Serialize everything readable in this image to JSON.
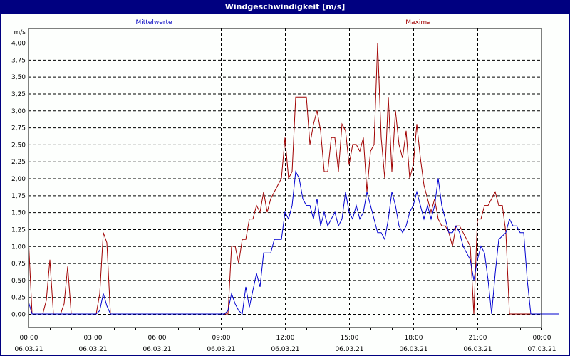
{
  "window": {
    "title": "Windgeschwindigkeit [m/s]"
  },
  "legend": {
    "mean_label": "Mittelwerte",
    "max_label": "Maxima"
  },
  "colors": {
    "titlebar": "#000080",
    "background": "#fdfffd",
    "mean": "#0000d0",
    "max": "#a00000",
    "grid": "#000000"
  },
  "chart_data": {
    "type": "line",
    "title": "Windgeschwindigkeit [m/s]",
    "ylabel": "m/s",
    "xlabel": "",
    "ylim": [
      0,
      4.0
    ],
    "grid": true,
    "legend_position": "top",
    "y_ticks": [
      "0,00",
      "0,25",
      "0,50",
      "0,75",
      "1,00",
      "1,25",
      "1,50",
      "1,75",
      "2,00",
      "2,25",
      "2,50",
      "2,75",
      "3,00",
      "3,25",
      "3,50",
      "3,75",
      "4,00"
    ],
    "x_ticks": [
      {
        "time": "00:00",
        "date": "06.03.21"
      },
      {
        "time": "03:00",
        "date": "06.03.21"
      },
      {
        "time": "06:00",
        "date": "06.03.21"
      },
      {
        "time": "09:00",
        "date": "06.03.21"
      },
      {
        "time": "12:00",
        "date": "06.03.21"
      },
      {
        "time": "15:00",
        "date": "06.03.21"
      },
      {
        "time": "18:00",
        "date": "06.03.21"
      },
      {
        "time": "21:00",
        "date": "06.03.21"
      },
      {
        "time": "00:00",
        "date": "07.03.21"
      }
    ],
    "x_interval_minutes": 10,
    "series": [
      {
        "name": "Mittelwerte",
        "color": "#0000d0",
        "values": [
          0.18,
          0.0,
          0,
          0,
          0,
          0,
          0,
          0,
          0,
          0,
          0,
          0,
          0,
          0,
          0,
          0,
          0,
          0,
          0,
          0,
          0.05,
          0.3,
          0.12,
          0.0,
          0,
          0,
          0,
          0,
          0,
          0,
          0,
          0,
          0,
          0,
          0,
          0,
          0,
          0,
          0,
          0,
          0,
          0,
          0,
          0,
          0,
          0,
          0,
          0,
          0,
          0,
          0,
          0,
          0,
          0,
          0,
          0,
          0.05,
          0.3,
          0.15,
          0.05,
          0.0,
          0.4,
          0.1,
          0.35,
          0.6,
          0.4,
          0.9,
          0.9,
          0.9,
          1.1,
          1.1,
          1.1,
          1.5,
          1.4,
          1.6,
          2.1,
          2.0,
          1.7,
          1.6,
          1.6,
          1.4,
          1.7,
          1.3,
          1.5,
          1.3,
          1.4,
          1.5,
          1.3,
          1.4,
          1.8,
          1.5,
          1.4,
          1.6,
          1.4,
          1.5,
          1.8,
          1.6,
          1.4,
          1.2,
          1.2,
          1.1,
          1.4,
          1.8,
          1.6,
          1.3,
          1.2,
          1.3,
          1.5,
          1.6,
          1.8,
          1.6,
          1.4,
          1.6,
          1.4,
          1.6,
          2.0,
          1.6,
          1.4,
          1.2,
          1.2,
          1.3,
          1.2,
          1.0,
          0.9,
          0.8,
          0.5,
          0.8,
          1.0,
          0.9,
          0.5,
          0.0,
          0.6,
          1.1,
          1.15,
          1.2,
          1.4,
          1.3,
          1.3,
          1.2,
          1.2,
          0.5,
          0.0,
          0,
          0,
          0,
          0,
          0,
          0,
          0,
          0
        ]
      },
      {
        "name": "Maxima",
        "color": "#a00000",
        "values": [
          1.1,
          0.0,
          0,
          0,
          0,
          0.2,
          0.8,
          0.0,
          0,
          0,
          0.15,
          0.7,
          0.0,
          0,
          0,
          0,
          0,
          0,
          0,
          0,
          0.3,
          1.2,
          1.05,
          0.0,
          0,
          0,
          0,
          0,
          0,
          0,
          0,
          0,
          0,
          0,
          0,
          0,
          0,
          0,
          0,
          0,
          0,
          0,
          0,
          0,
          0,
          0,
          0,
          0,
          0,
          0,
          0,
          0,
          0,
          0,
          0,
          0,
          0.0,
          1.0,
          1.0,
          0.75,
          1.1,
          1.1,
          1.4,
          1.4,
          1.6,
          1.5,
          1.8,
          1.5,
          1.7,
          1.8,
          1.9,
          2.0,
          2.6,
          2.0,
          2.1,
          3.2,
          3.2,
          3.2,
          3.2,
          2.5,
          2.8,
          3.0,
          2.7,
          2.1,
          2.1,
          2.6,
          2.6,
          2.1,
          2.8,
          2.7,
          2.2,
          2.5,
          2.5,
          2.4,
          2.6,
          1.8,
          2.4,
          2.5,
          4.0,
          2.6,
          2.0,
          3.2,
          2.1,
          3.0,
          2.5,
          2.3,
          2.7,
          2.0,
          2.2,
          2.8,
          2.3,
          1.9,
          1.7,
          1.5,
          1.7,
          1.4,
          1.3,
          1.3,
          1.2,
          1.0,
          1.3,
          1.3,
          1.2,
          1.1,
          1.0,
          0.0,
          1.4,
          1.4,
          1.6,
          1.6,
          1.7,
          1.8,
          1.6,
          1.6,
          1.2,
          0.0,
          0,
          0,
          0,
          0,
          0,
          0,
          0,
          0,
          0
        ]
      }
    ]
  }
}
